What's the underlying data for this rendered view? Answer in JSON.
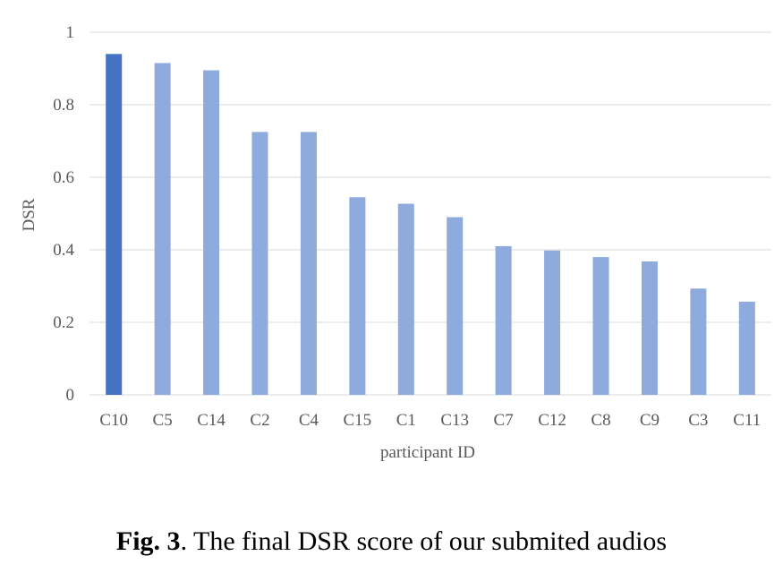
{
  "chart_data": {
    "type": "bar",
    "categories": [
      "C10",
      "C5",
      "C14",
      "C2",
      "C4",
      "C15",
      "C1",
      "C13",
      "C7",
      "C12",
      "C8",
      "C9",
      "C3",
      "C11"
    ],
    "values": [
      0.94,
      0.915,
      0.895,
      0.725,
      0.725,
      0.545,
      0.527,
      0.49,
      0.41,
      0.398,
      0.38,
      0.368,
      0.293,
      0.257
    ],
    "xlabel": "participant ID",
    "ylabel": "DSR",
    "ylim": [
      0,
      1
    ],
    "yticks": [
      "0",
      "0.2",
      "0.4",
      "0.6",
      "0.8",
      "1"
    ],
    "grid": true,
    "colors": {
      "highlight": "#4472C4",
      "bar": "#8FAADC",
      "grid": "#D9D9D9",
      "text": "#595959"
    },
    "highlight_index": 0
  },
  "caption": {
    "label": "Fig. 3",
    "text": ". The final DSR score of our submited audios"
  }
}
